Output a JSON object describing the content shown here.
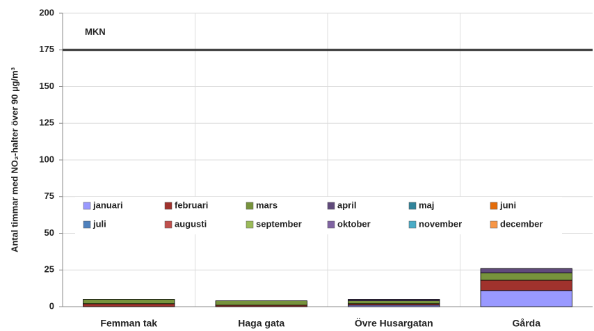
{
  "chart_data": {
    "type": "stacked_bar",
    "y_label": "Antal timmar med NO₂-halter över 90 µg/m³",
    "categories": [
      "Femman tak",
      "Haga gata",
      "Övre Husargatan",
      "Gårda"
    ],
    "series": [
      {
        "name": "januari",
        "color": "#9999ff",
        "values": [
          0,
          0,
          1,
          11
        ]
      },
      {
        "name": "februari",
        "color": "#a0322d",
        "values": [
          2,
          1,
          1,
          7
        ]
      },
      {
        "name": "mars",
        "color": "#77933c",
        "values": [
          3,
          3,
          2,
          5
        ]
      },
      {
        "name": "april",
        "color": "#604a7b",
        "values": [
          0,
          0,
          1,
          3
        ]
      },
      {
        "name": "maj",
        "color": "#31849b",
        "values": [
          0,
          0,
          0,
          0
        ]
      },
      {
        "name": "juni",
        "color": "#e46c0a",
        "values": [
          0,
          0,
          0,
          0
        ]
      },
      {
        "name": "juli",
        "color": "#4f81bd",
        "values": [
          0,
          0,
          0,
          0
        ]
      },
      {
        "name": "augusti",
        "color": "#c0504d",
        "values": [
          0,
          0,
          0,
          0
        ]
      },
      {
        "name": "september",
        "color": "#9bbb59",
        "values": [
          0,
          0,
          0,
          0
        ]
      },
      {
        "name": "oktober",
        "color": "#8064a2",
        "values": [
          0,
          0,
          0,
          0
        ]
      },
      {
        "name": "november",
        "color": "#4bacc6",
        "values": [
          0,
          0,
          0,
          0
        ]
      },
      {
        "name": "december",
        "color": "#f79646",
        "values": [
          0,
          0,
          0,
          0
        ]
      }
    ],
    "reference_line": {
      "value": 175,
      "label": "MKN"
    },
    "ylim": [
      0,
      200
    ],
    "yticks": [
      0,
      25,
      50,
      75,
      100,
      125,
      150,
      175,
      200
    ],
    "grid": true
  }
}
